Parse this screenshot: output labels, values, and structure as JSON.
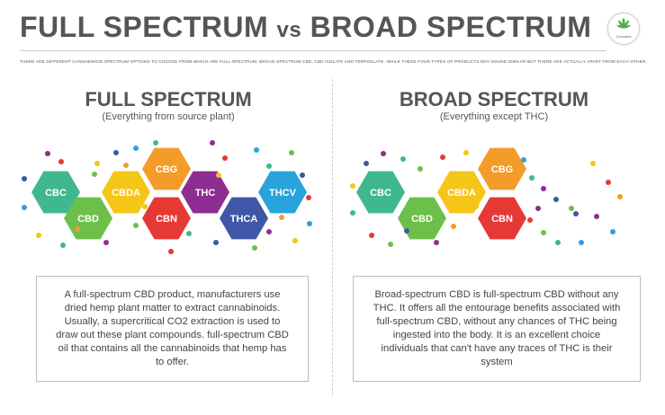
{
  "header": {
    "title_main": "FULL SPECTRUM",
    "title_vs": "vs",
    "title_end": "BROAD SPECTRUM",
    "intro": "THERE ARE DIFFERENT CANNABINOID SPECTRUM OPTIONS TO CHOOSE FROM WHICH ARE FULL-SPECTRUM, BROAD-SPECTRUM CBD, CBD ISOLATE AND TERPSOLATE. WHILE THESE FOUR TYPES OF PRODUCTS MAY SOUND SIMILAR BUT THERE ARE ACTUALLY APART FROM EACH OTHER.",
    "logo_icon": "cannabis-leaf-icon",
    "logo_text": "Cannabis"
  },
  "full": {
    "title": "FULL SPECTRUM",
    "subtitle": "(Everything from source plant)",
    "description": "A full-spectrum CBD product, manufacturers use dried hemp plant matter to extract cannabinoids. Usually, a supercritical CO2 extraction is used to draw out these plant compounds. full-spectrum CBD oil that contains all the cannabinoids that hemp has to offer.",
    "hexagons": [
      {
        "label": "CBC",
        "color": "#3fb88f"
      },
      {
        "label": "CBD",
        "color": "#6cc04a"
      },
      {
        "label": "CBDA",
        "color": "#f5c518"
      },
      {
        "label": "CBG",
        "color": "#f39c2a"
      },
      {
        "label": "CBN",
        "color": "#e53935"
      },
      {
        "label": "THC",
        "color": "#8e2d91"
      },
      {
        "label": "THCA",
        "color": "#3f57a6"
      },
      {
        "label": "THCV",
        "color": "#2aa3dc"
      }
    ]
  },
  "broad": {
    "title": "BROAD SPECTRUM",
    "subtitle": "(Everything except THC)",
    "description": "Broad-spectrum CBD is full-spectrum CBD without any THC. It offers all the entourage benefits associated with full-spectrum CBD, without any chances of THC being ingested into the body. It is an excellent choice individuals that can't have any traces of THC is their system",
    "hexagons": [
      {
        "label": "CBC",
        "color": "#3fb88f"
      },
      {
        "label": "CBD",
        "color": "#6cc04a"
      },
      {
        "label": "CBDA",
        "color": "#f5c518"
      },
      {
        "label": "CBG",
        "color": "#f39c2a"
      },
      {
        "label": "CBN",
        "color": "#e53935"
      }
    ]
  },
  "dot_colors": [
    "#8e2d91",
    "#e53935",
    "#3fb88f",
    "#f5c518",
    "#3f57a6",
    "#2aa3dc",
    "#6cc04a",
    "#f39c2a"
  ]
}
